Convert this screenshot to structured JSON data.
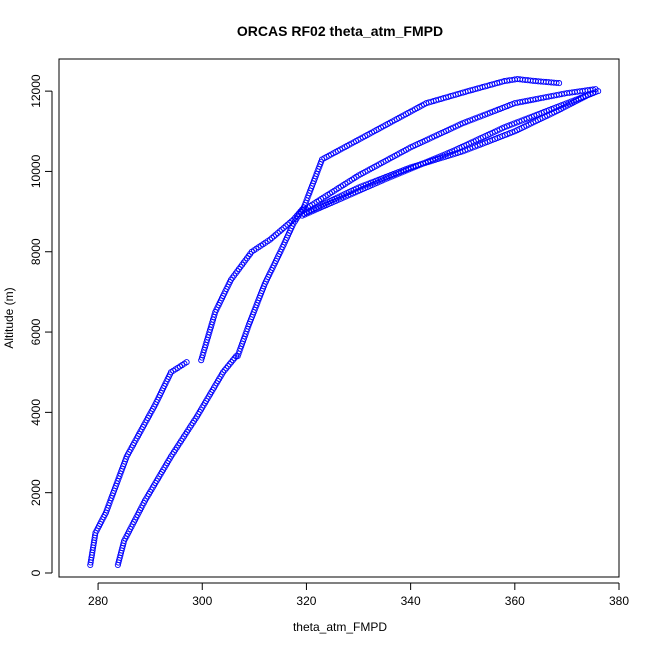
{
  "chart_data": {
    "type": "scatter",
    "title": "ORCAS RF02 theta_atm_FMPD",
    "xlabel": "theta_atm_FMPD",
    "ylabel": "Altitude (m)",
    "xlim": [
      272.5,
      380
    ],
    "ylim": [
      -100,
      12800
    ],
    "x_ticks": [
      280,
      300,
      320,
      340,
      360,
      380
    ],
    "y_ticks": [
      0,
      2000,
      4000,
      6000,
      8000,
      10000,
      12000
    ],
    "grid": false,
    "legend": "none",
    "colors": {
      "points": "#0000ff",
      "axis": "#000000"
    },
    "marker": "open-circle",
    "series": [
      {
        "profile_a": [
          [
            278.5,
            200
          ],
          [
            279.5,
            1000
          ],
          [
            281.5,
            1500
          ],
          [
            285.5,
            2900
          ],
          [
            291,
            4200
          ],
          [
            294,
            5000
          ],
          [
            297,
            5250
          ]
        ],
        "profile_b": [
          [
            299.8,
            5300
          ],
          [
            302.5,
            6500
          ],
          [
            305.5,
            7300
          ],
          [
            309.5,
            8000
          ],
          [
            313,
            8300
          ],
          [
            317.5,
            8800
          ],
          [
            319.5,
            9100
          ]
        ],
        "profile_c": [
          [
            319.5,
            9100
          ],
          [
            323,
            10300
          ],
          [
            333,
            11000
          ],
          [
            343,
            11700
          ],
          [
            351,
            12000
          ],
          [
            358,
            12250
          ],
          [
            360.5,
            12300
          ],
          [
            364,
            12250
          ],
          [
            368.5,
            12200
          ]
        ],
        "profile_d": [
          [
            283.8,
            200
          ],
          [
            285,
            800
          ],
          [
            289,
            1800
          ],
          [
            294,
            2900
          ],
          [
            299,
            3900
          ],
          [
            304,
            5000
          ],
          [
            306.5,
            5400
          ]
        ],
        "profile_e": [
          [
            306.8,
            5400
          ],
          [
            309,
            6200
          ],
          [
            312,
            7200
          ],
          [
            315,
            8000
          ],
          [
            317.5,
            8700
          ],
          [
            319.5,
            9100
          ]
        ],
        "profile_f": [
          [
            319.5,
            8950
          ],
          [
            330,
            9600
          ],
          [
            340,
            10100
          ],
          [
            350,
            10500
          ],
          [
            360,
            11000
          ],
          [
            368,
            11500
          ],
          [
            374,
            11900
          ],
          [
            376,
            12000
          ]
        ],
        "profile_g": [
          [
            319,
            9000
          ],
          [
            330,
            9900
          ],
          [
            340,
            10600
          ],
          [
            350,
            11200
          ],
          [
            360,
            11700
          ],
          [
            370,
            11950
          ],
          [
            375.5,
            12050
          ]
        ],
        "profile_h": [
          [
            319.2,
            8900
          ],
          [
            328,
            9400
          ],
          [
            335,
            9800
          ],
          [
            348,
            10500
          ],
          [
            358,
            11100
          ],
          [
            368,
            11600
          ],
          [
            375,
            11950
          ]
        ]
      }
    ]
  }
}
